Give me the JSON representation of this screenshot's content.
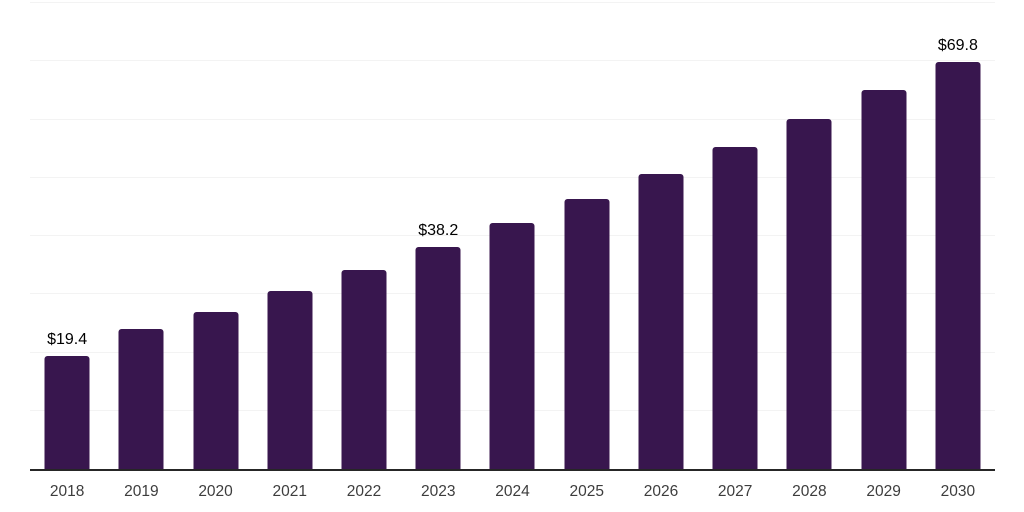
{
  "chart_data": {
    "type": "bar",
    "categories": [
      "2018",
      "2019",
      "2020",
      "2021",
      "2022",
      "2023",
      "2024",
      "2025",
      "2026",
      "2027",
      "2028",
      "2029",
      "2030"
    ],
    "values": [
      19.4,
      24.1,
      27.0,
      30.6,
      34.2,
      38.2,
      42.3,
      46.4,
      50.7,
      55.3,
      60.1,
      65.0,
      69.8
    ],
    "value_labels": [
      "$19.4",
      "",
      "",
      "",
      "",
      "$38.2",
      "",
      "",
      "",
      "",
      "",
      "",
      "$69.8"
    ],
    "xlabel": "",
    "ylabel": "",
    "ylim": [
      0,
      80
    ],
    "grid_interval": 10,
    "grid": "horizontal, faint, no y-axis tick labels",
    "legend_position": "none",
    "colors": {
      "bar": "#38164E",
      "axis": "#262626",
      "grid": "#f3f3f3",
      "value_label": "#000000",
      "tick_label": "#3d3d3d",
      "background": "#ffffff"
    }
  }
}
